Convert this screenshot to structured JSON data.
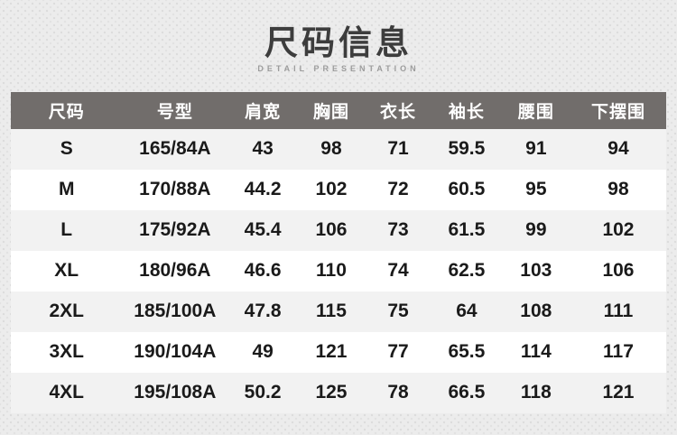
{
  "page": {
    "title": "尺码信息",
    "subtitle": "DETAIL PRESENTATION"
  },
  "size_table": {
    "columns": [
      "尺码",
      "号型",
      "肩宽",
      "胸围",
      "衣长",
      "袖长",
      "腰围",
      "下摆围"
    ],
    "rows": [
      [
        "S",
        "165/84A",
        "43",
        "98",
        "71",
        "59.5",
        "91",
        "94"
      ],
      [
        "M",
        "170/88A",
        "44.2",
        "102",
        "72",
        "60.5",
        "95",
        "98"
      ],
      [
        "L",
        "175/92A",
        "45.4",
        "106",
        "73",
        "61.5",
        "99",
        "102"
      ],
      [
        "XL",
        "180/96A",
        "46.6",
        "110",
        "74",
        "62.5",
        "103",
        "106"
      ],
      [
        "2XL",
        "185/100A",
        "47.8",
        "115",
        "75",
        "64",
        "108",
        "111"
      ],
      [
        "3XL",
        "190/104A",
        "49",
        "121",
        "77",
        "65.5",
        "114",
        "117"
      ],
      [
        "4XL",
        "195/108A",
        "50.2",
        "125",
        "78",
        "66.5",
        "118",
        "121"
      ]
    ]
  },
  "colors": {
    "page_bg": "#ececec",
    "dot_color": "#dcdcdc",
    "dot_color_light": "#e2e2e2",
    "title_text": "#3d3d3d",
    "subtitle_text": "#9c9c9c",
    "header_bg": "#716d6b",
    "header_text": "#ffffff",
    "row_bg": "#ffffff",
    "row_alt_bg": "#f2f2f2",
    "cell_text": "#1a1a1a"
  }
}
